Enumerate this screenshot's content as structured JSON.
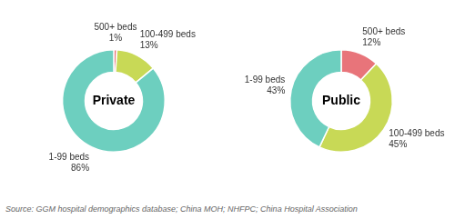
{
  "chart_data": [
    {
      "type": "doughnut",
      "title": "Private",
      "categories": [
        "500+ beds",
        "100-499 beds",
        "1-99 beds"
      ],
      "values": [
        1,
        13,
        86
      ],
      "value_labels": [
        "1%",
        "13%",
        "86%"
      ],
      "colors": [
        "#e8747a",
        "#c8d956",
        "#6dcfbf"
      ],
      "data_labels": true,
      "annotations": [
        "Source: GGM hospital demographics database; China MOH; NHFPC; China Hospital Association"
      ]
    },
    {
      "type": "doughnut",
      "title": "Public",
      "categories": [
        "500+ beds",
        "100-499 beds",
        "1-99 beds"
      ],
      "values": [
        12,
        45,
        43
      ],
      "value_labels": [
        "12%",
        "45%",
        "43%"
      ],
      "colors": [
        "#e8747a",
        "#c8d956",
        "#6dcfbf"
      ],
      "data_labels": true
    }
  ]
}
